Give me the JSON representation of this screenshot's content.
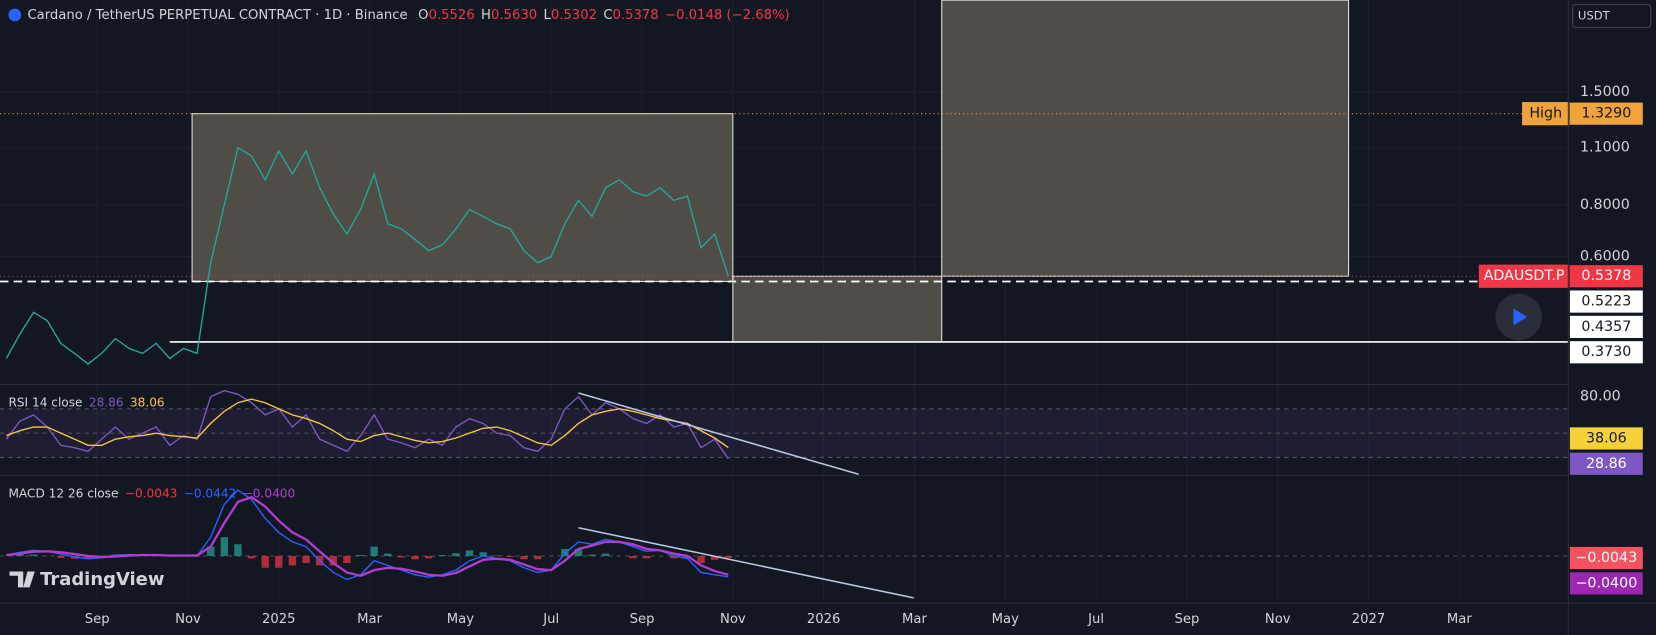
{
  "header": {
    "ohlc": [
      {
        "key": "O",
        "value": "0.5526"
      },
      {
        "key": "H",
        "value": "0.5630"
      },
      {
        "key": "L",
        "value": "0.5302"
      },
      {
        "key": "C",
        "value": "0.5378"
      }
    ],
    "change": "−0.0148 (−2.68%)"
  },
  "currency": "USDT",
  "watermark": "TradingView",
  "chart_data": [
    {
      "type": "line",
      "title": "Cardano / TetherUS PERPETUAL CONTRACT · 1D · Binance",
      "x": [
        -1.0,
        -0.7,
        -0.4,
        -0.1,
        0.2,
        0.5,
        0.8,
        1.1,
        1.4,
        1.7,
        2.0,
        2.3,
        2.6,
        2.9,
        3.2,
        3.5,
        3.8,
        4.1,
        4.4,
        4.7,
        5.0,
        5.3,
        5.6,
        5.9,
        6.2,
        6.5,
        6.8,
        7.1,
        7.4,
        7.7,
        8.0,
        8.3,
        8.6,
        8.9,
        9.2,
        9.5,
        9.8,
        10.1,
        10.4,
        10.7,
        11.0,
        11.3,
        11.6,
        11.9,
        12.2,
        12.5,
        12.8,
        13.1,
        13.4,
        13.7,
        14.0,
        14.3,
        14.6,
        14.9
      ],
      "xlim": [
        -1.14,
        33.4
      ],
      "xticks": [
        {
          "value": 1,
          "label": "Sep"
        },
        {
          "value": 3,
          "label": "Nov"
        },
        {
          "value": 5,
          "label": "2025"
        },
        {
          "value": 7,
          "label": "Mar"
        },
        {
          "value": 9,
          "label": "May"
        },
        {
          "value": 11,
          "label": "Jul"
        },
        {
          "value": 13,
          "label": "Sep"
        },
        {
          "value": 15,
          "label": "Nov"
        },
        {
          "value": 17,
          "label": "2026"
        },
        {
          "value": 19,
          "label": "Mar"
        },
        {
          "value": 21,
          "label": "May"
        },
        {
          "value": 23,
          "label": "Jul"
        },
        {
          "value": 25,
          "label": "Sep"
        },
        {
          "value": 27,
          "label": "Nov"
        },
        {
          "value": 29,
          "label": "2027"
        },
        {
          "value": 31,
          "label": "Mar"
        }
      ],
      "ylim": [
        0.296,
        2.5
      ],
      "yscale": "log",
      "yticks": [
        {
          "value": 1.5,
          "label": "1.5000"
        },
        {
          "value": 1.1,
          "label": "1.1000"
        },
        {
          "value": 0.8,
          "label": "0.8000"
        },
        {
          "value": 0.6,
          "label": "0.6000"
        }
      ],
      "grid": true,
      "series": [
        {
          "color": "#26a69a",
          "values": [
            0.34,
            0.39,
            0.44,
            0.42,
            0.37,
            0.35,
            0.33,
            0.35,
            0.38,
            0.36,
            0.35,
            0.37,
            0.34,
            0.36,
            0.35,
            0.58,
            0.8,
            1.1,
            1.05,
            0.92,
            1.08,
            0.95,
            1.08,
            0.88,
            0.76,
            0.68,
            0.78,
            0.95,
            0.72,
            0.7,
            0.66,
            0.62,
            0.64,
            0.7,
            0.78,
            0.75,
            0.72,
            0.7,
            0.62,
            0.58,
            0.6,
            0.72,
            0.82,
            0.75,
            0.88,
            0.92,
            0.86,
            0.84,
            0.88,
            0.82,
            0.84,
            0.63,
            0.68,
            0.5378
          ]
        }
      ],
      "boxes": [
        {
          "x": [
            3.09,
            15.0
          ],
          "y": [
            1.329,
            0.5223
          ]
        },
        {
          "x": [
            15.0,
            19.6
          ],
          "y": [
            0.5378,
            0.373
          ]
        },
        {
          "x": [
            19.6,
            28.56
          ],
          "y": [
            2.5,
            0.5378
          ]
        }
      ],
      "lines": [
        {
          "value": 1.329,
          "color": "#f0a23b",
          "style": "dotted"
        },
        {
          "value": 0.5378,
          "color": "#f23645",
          "style": "dotted"
        },
        {
          "value": 0.5223,
          "color": "#ffffff",
          "style": "dashed"
        },
        {
          "value": 0.373,
          "color": "#ffffff",
          "style": "solid",
          "x_start": 2.6
        }
      ],
      "value_labels": [
        {
          "value": 1.329,
          "label": "1.3290",
          "tag": "High",
          "color": "#f0a23b",
          "text_color": "#131722"
        },
        {
          "value": 0.5378,
          "label": "0.5378",
          "tag": "ADAUSDT.P",
          "color": "#f23645",
          "text_color": "#ffffff"
        },
        {
          "value": 0.5223,
          "label": "0.5223",
          "color": "#ffffff",
          "text_color": "#131722"
        },
        {
          "value": 0.4357,
          "label": "0.4357",
          "color": "#ffffff",
          "text_color": "#131722"
        },
        {
          "value": 0.373,
          "label": "0.3730",
          "color": "#ffffff",
          "text_color": "#131722"
        }
      ]
    },
    {
      "type": "line",
      "legend_title": "RSI 14 close",
      "legend_values": [
        "28.86",
        "38.06"
      ],
      "ylim": [
        15.2,
        89.1
      ],
      "yticks": [
        {
          "value": 80,
          "label": "80.00"
        }
      ],
      "levels": [
        70,
        50,
        30
      ],
      "band": [
        30,
        70
      ],
      "series": [
        {
          "color": "#7e57c2",
          "values": [
            45,
            60,
            65,
            55,
            40,
            38,
            35,
            45,
            55,
            45,
            50,
            55,
            40,
            48,
            45,
            80,
            85,
            82,
            75,
            65,
            70,
            55,
            65,
            45,
            40,
            35,
            48,
            65,
            45,
            42,
            38,
            45,
            40,
            55,
            62,
            58,
            50,
            48,
            38,
            35,
            45,
            70,
            80,
            65,
            75,
            70,
            62,
            58,
            65,
            55,
            58,
            38,
            45,
            28.86
          ]
        },
        {
          "color": "#f5c542",
          "values": [
            48,
            52,
            55,
            55,
            50,
            45,
            40,
            40,
            45,
            47,
            48,
            50,
            48,
            47,
            46,
            58,
            68,
            75,
            78,
            75,
            70,
            65,
            62,
            58,
            52,
            45,
            43,
            48,
            50,
            47,
            44,
            42,
            43,
            46,
            50,
            54,
            55,
            52,
            47,
            42,
            40,
            48,
            58,
            65,
            68,
            70,
            68,
            65,
            62,
            60,
            58,
            52,
            46,
            38.06
          ]
        }
      ],
      "trendlines": [
        {
          "x": [
            11.6,
            17.77
          ],
          "values": [
            83,
            16.1
          ],
          "color": "#b8c7e0"
        }
      ],
      "value_labels": [
        {
          "value": 38.06,
          "label": "38.06",
          "color": "#f5d13a",
          "text_color": "#131722"
        },
        {
          "value": 28.86,
          "label": "28.86",
          "color": "#7e57c2",
          "text_color": "#ffffff"
        }
      ]
    },
    {
      "type": "line",
      "legend_title": "MACD 12 26 close",
      "legend_values": [
        "−0.0043",
        "−0.0442",
        "−0.0400"
      ],
      "ylim": [
        -0.098,
        0.169
      ],
      "levels": [
        0
      ],
      "series": [
        {
          "kind": "bar",
          "color": "#f23645",
          "up_color": "#26a69a",
          "values": [
            0,
            0.003,
            0.003,
            0,
            -0.004,
            -0.006,
            -0.006,
            -0.002,
            0.003,
            0.002,
            0,
            0.001,
            -0.001,
            0,
            -0.001,
            0.02,
            0.04,
            0.025,
            -0.005,
            -0.025,
            -0.025,
            -0.02,
            -0.015,
            -0.02,
            -0.02,
            -0.015,
            0.002,
            0.02,
            0.005,
            -0.003,
            -0.007,
            -0.005,
            0.002,
            0.006,
            0.012,
            0.008,
            0.001,
            -0.002,
            -0.007,
            -0.007,
            0,
            0.015,
            0.015,
            0.003,
            0.005,
            0,
            -0.005,
            -0.005,
            0,
            -0.005,
            -0.005,
            -0.015,
            -0.008,
            -0.0043
          ]
        },
        {
          "color": "#2962ff",
          "values": [
            0.002,
            0.008,
            0.012,
            0.01,
            0.004,
            -0.002,
            -0.006,
            -0.004,
            0.002,
            0.003,
            0.002,
            0.003,
            0.0,
            0.001,
            0.0,
            0.04,
            0.11,
            0.14,
            0.12,
            0.08,
            0.05,
            0.03,
            0.02,
            -0.01,
            -0.035,
            -0.05,
            -0.04,
            -0.01,
            -0.02,
            -0.03,
            -0.04,
            -0.045,
            -0.04,
            -0.03,
            -0.01,
            0.0,
            -0.005,
            -0.01,
            -0.025,
            -0.035,
            -0.03,
            0.005,
            0.03,
            0.025,
            0.035,
            0.03,
            0.02,
            0.01,
            0.012,
            0.0,
            -0.005,
            -0.035,
            -0.04,
            -0.0442
          ]
        },
        {
          "color": "#b03cd0",
          "values": [
            0.002,
            0.005,
            0.009,
            0.01,
            0.008,
            0.004,
            0.0,
            -0.002,
            -0.001,
            0.001,
            0.002,
            0.002,
            0.001,
            0.001,
            0.001,
            0.02,
            0.07,
            0.115,
            0.125,
            0.105,
            0.075,
            0.05,
            0.035,
            0.01,
            -0.015,
            -0.035,
            -0.042,
            -0.03,
            -0.025,
            -0.027,
            -0.033,
            -0.04,
            -0.042,
            -0.036,
            -0.022,
            -0.008,
            -0.006,
            -0.008,
            -0.018,
            -0.028,
            -0.03,
            -0.01,
            0.015,
            0.022,
            0.03,
            0.03,
            0.025,
            0.015,
            0.012,
            0.005,
            0.0,
            -0.02,
            -0.032,
            -0.04
          ]
        }
      ],
      "trendlines": [
        {
          "x": [
            11.6,
            18.98
          ],
          "values": [
            0.06,
            -0.089
          ],
          "color": "#b8c7e0"
        }
      ],
      "value_labels": [
        {
          "value": -0.0043,
          "label": "−0.0043",
          "color": "#f7525f",
          "text_color": "#ffffff"
        },
        {
          "value": -0.04,
          "label": "−0.0400",
          "color": "#9c27b0",
          "text_color": "#ffffff"
        }
      ]
    }
  ]
}
